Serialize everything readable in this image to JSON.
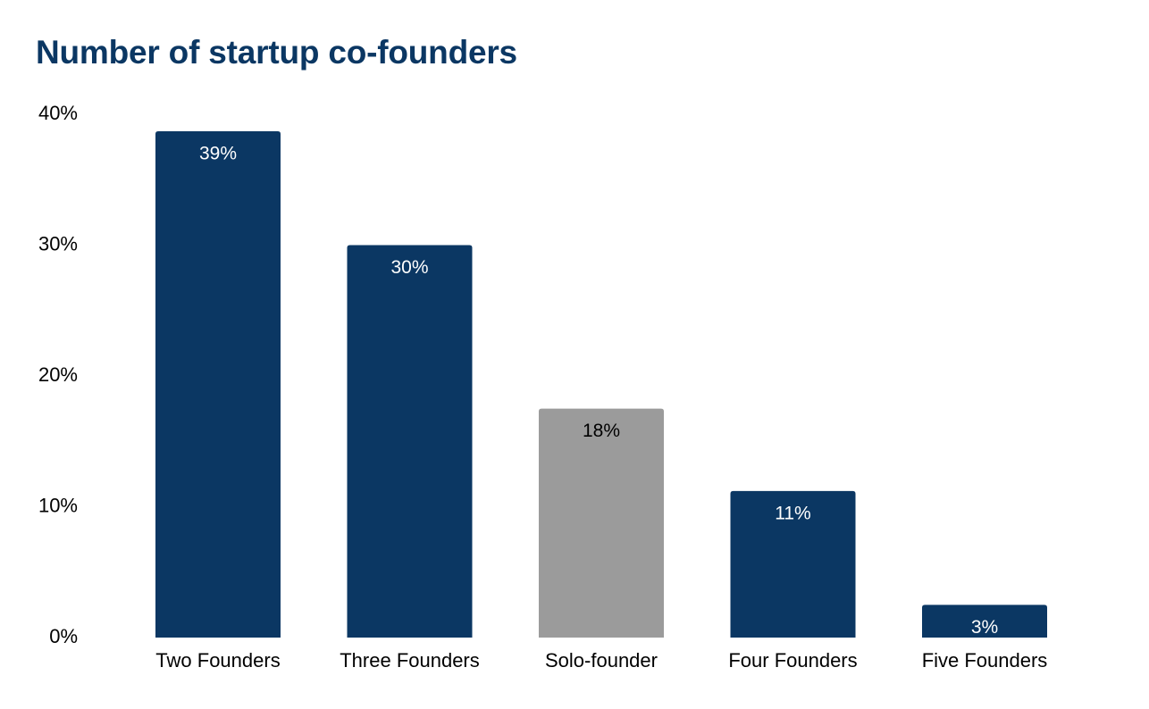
{
  "chart_data": {
    "type": "bar",
    "title": "Number of startup co-founders",
    "xlabel": "",
    "ylabel": "",
    "categories": [
      "Two Founders",
      "Three Founders",
      "Solo-founder",
      "Four Founders",
      "Five Founders"
    ],
    "values": [
      38.7,
      30.0,
      17.5,
      11.2,
      2.5
    ],
    "data_labels": [
      "39%",
      "30%",
      "18%",
      "11%",
      "3%"
    ],
    "bar_colors": [
      "#0b3763",
      "#0b3763",
      "#9b9b9b",
      "#0b3763",
      "#0b3763"
    ],
    "label_colors": [
      "#ffffff",
      "#ffffff",
      "#000000",
      "#ffffff",
      "#ffffff"
    ],
    "ylim": [
      0,
      40
    ],
    "yticks": [
      0,
      10,
      20,
      30,
      40
    ],
    "ytick_labels": [
      "0%",
      "10%",
      "20%",
      "30%",
      "40%"
    ],
    "grid": false,
    "legend": "none"
  }
}
